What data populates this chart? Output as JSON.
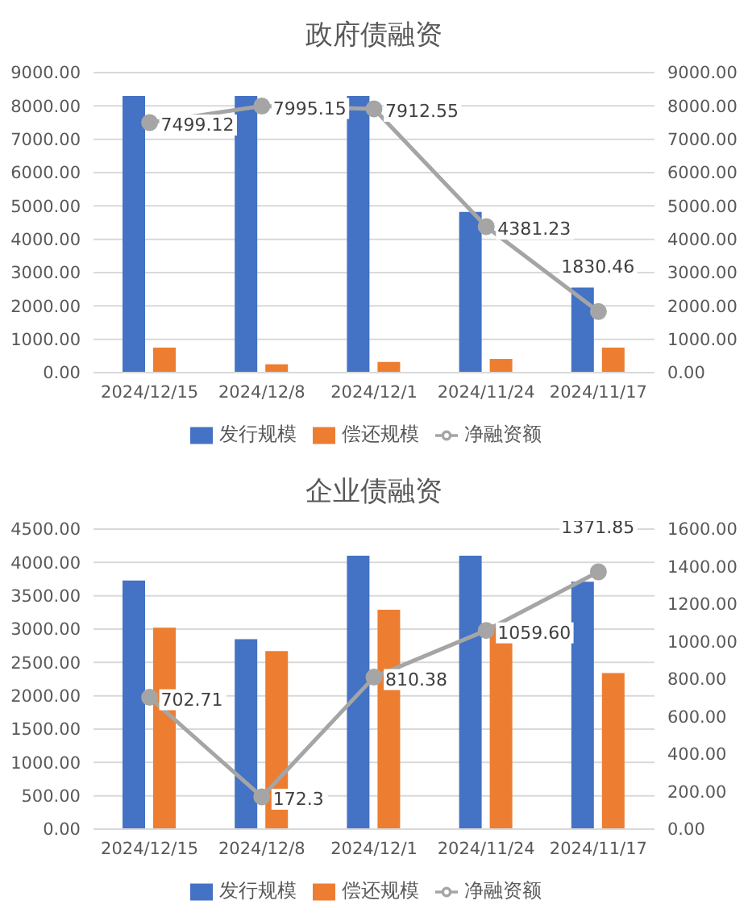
{
  "chart_data": [
    {
      "type": "bar",
      "title": "政府债融资",
      "categories": [
        "2024/12/15",
        "2024/12/8",
        "2024/12/1",
        "2024/11/24",
        "2024/11/17"
      ],
      "series": [
        {
          "name": "发行规模",
          "color": "#4472c4",
          "values": [
            8300,
            8300,
            8300,
            4820,
            2550
          ]
        },
        {
          "name": "偿还规模",
          "color": "#ed7d31",
          "values": [
            750,
            250,
            320,
            410,
            750
          ]
        },
        {
          "name": "净融资额",
          "type": "line",
          "axis": "y2",
          "marker": "circle",
          "color": "#a5a5a5",
          "values": [
            7499.12,
            7995.15,
            7912.55,
            4381.23,
            1830.46
          ],
          "value_labels": [
            "7499.12",
            "7995.15",
            "7912.55",
            "4381.23",
            "1830.46"
          ]
        }
      ],
      "ylim": [
        0,
        9000
      ],
      "yticks": [
        {
          "value": 0,
          "label": "0.00"
        },
        {
          "value": 1000,
          "label": "1000.00"
        },
        {
          "value": 2000,
          "label": "2000.00"
        },
        {
          "value": 3000,
          "label": "3000.00"
        },
        {
          "value": 4000,
          "label": "4000.00"
        },
        {
          "value": 5000,
          "label": "5000.00"
        },
        {
          "value": 6000,
          "label": "6000.00"
        },
        {
          "value": 7000,
          "label": "7000.00"
        },
        {
          "value": 8000,
          "label": "8000.00"
        },
        {
          "value": 9000,
          "label": "9000.00"
        }
      ],
      "y2lim": [
        0,
        9000
      ],
      "y2ticks": [
        {
          "value": 0,
          "label": "0.00"
        },
        {
          "value": 1000,
          "label": "1000.00"
        },
        {
          "value": 2000,
          "label": "2000.00"
        },
        {
          "value": 3000,
          "label": "3000.00"
        },
        {
          "value": 4000,
          "label": "4000.00"
        },
        {
          "value": 5000,
          "label": "5000.00"
        },
        {
          "value": 6000,
          "label": "6000.00"
        },
        {
          "value": 7000,
          "label": "7000.00"
        },
        {
          "value": 8000,
          "label": "8000.00"
        },
        {
          "value": 9000,
          "label": "9000.00"
        }
      ],
      "grid": "y",
      "legend": "bottom"
    },
    {
      "type": "bar",
      "title": "企业债融资",
      "categories": [
        "2024/12/15",
        "2024/12/8",
        "2024/12/1",
        "2024/11/24",
        "2024/11/17"
      ],
      "series": [
        {
          "name": "发行规模",
          "color": "#4472c4",
          "values": [
            3730,
            2850,
            4100,
            4100,
            3710
          ]
        },
        {
          "name": "偿还规模",
          "color": "#ed7d31",
          "values": [
            3020,
            2670,
            3290,
            3070,
            2340
          ]
        },
        {
          "name": "净融资额",
          "type": "line",
          "axis": "y2",
          "marker": "circle",
          "color": "#a5a5a5",
          "values": [
            702.71,
            172.3,
            810.38,
            1059.6,
            1371.85
          ],
          "value_labels": [
            "702.71",
            "172.3",
            "810.38",
            "1059.60",
            "1371.85"
          ]
        }
      ],
      "ylim": [
        0,
        4500
      ],
      "yticks": [
        {
          "value": 0,
          "label": "0.00"
        },
        {
          "value": 500,
          "label": "500.00"
        },
        {
          "value": 1000,
          "label": "1000.00"
        },
        {
          "value": 1500,
          "label": "1500.00"
        },
        {
          "value": 2000,
          "label": "2000.00"
        },
        {
          "value": 2500,
          "label": "2500.00"
        },
        {
          "value": 3000,
          "label": "3000.00"
        },
        {
          "value": 3500,
          "label": "3500.00"
        },
        {
          "value": 4000,
          "label": "4000.00"
        },
        {
          "value": 4500,
          "label": "4500.00"
        }
      ],
      "y2lim": [
        0,
        1600
      ],
      "y2ticks": [
        {
          "value": 0,
          "label": "0.00"
        },
        {
          "value": 200,
          "label": "200.00"
        },
        {
          "value": 400,
          "label": "400.00"
        },
        {
          "value": 600,
          "label": "600.00"
        },
        {
          "value": 800,
          "label": "800.00"
        },
        {
          "value": 1000,
          "label": "1000.00"
        },
        {
          "value": 1200,
          "label": "1200.00"
        },
        {
          "value": 1400,
          "label": "1400.00"
        },
        {
          "value": 1600,
          "label": "1600.00"
        }
      ],
      "grid": "y",
      "legend": "bottom"
    }
  ]
}
